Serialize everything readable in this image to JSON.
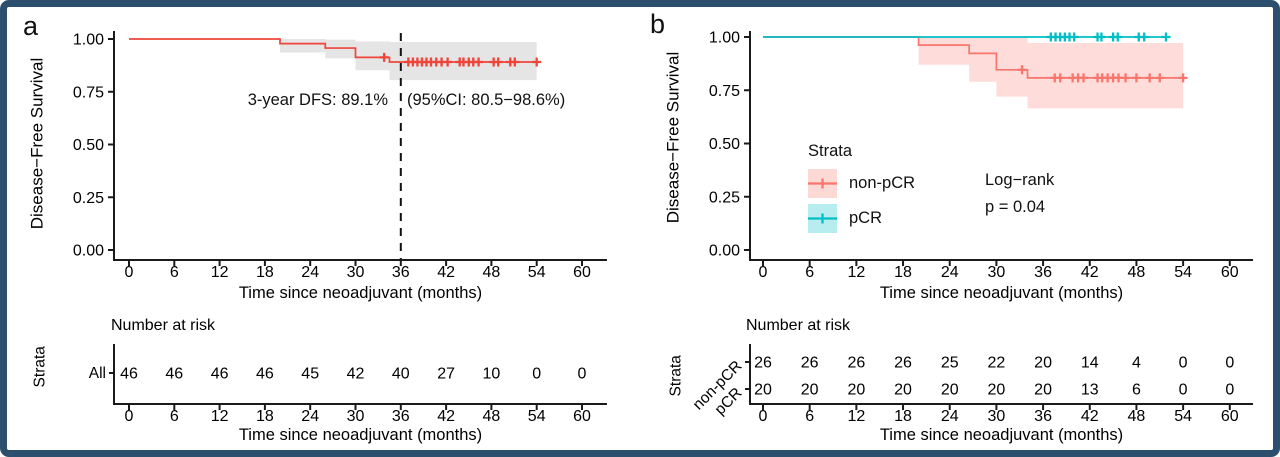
{
  "frame": {
    "border_color": "#2b4f6d",
    "background": "#ffffff"
  },
  "chart_data": [
    {
      "panel_label": "a",
      "type": "line",
      "subtype": "kaplan-meier-step",
      "xlabel": "Time since neoadjuvant (months)",
      "ylabel": "Disease−Free Survival",
      "xlim": [
        0,
        63
      ],
      "ylim": [
        0,
        1.0
      ],
      "xticks": [
        0,
        6,
        12,
        18,
        24,
        30,
        36,
        42,
        48,
        54,
        60
      ],
      "ytick_values": [
        1.0,
        0.75,
        0.5,
        0.25,
        0.0
      ],
      "ytick_labels": [
        "1.00",
        "0.75",
        "0.50",
        "0.25",
        "0.00"
      ],
      "grid": "off",
      "vline_x": 36,
      "vline_style": "dashed-black",
      "annotations": [
        {
          "text": "3-year DFS: 89.1%"
        },
        {
          "text": "(95%CI: 80.5−98.6%)"
        }
      ],
      "series": [
        {
          "name": "All",
          "color": "#ee443a",
          "ci_fill": "#e4e4e4",
          "ci_opacity": 0.95,
          "steps": [
            [
              0,
              1.0
            ],
            [
              20,
              1.0
            ],
            [
              20,
              0.978
            ],
            [
              26,
              0.978
            ],
            [
              26,
              0.957
            ],
            [
              30,
              0.957
            ],
            [
              30,
              0.913
            ],
            [
              34.5,
              0.913
            ],
            [
              34.5,
              0.891
            ],
            [
              54,
              0.891
            ]
          ],
          "ci_upper": [
            [
              20,
              1.0
            ],
            [
              26,
              1.0
            ],
            [
              26,
              0.997
            ],
            [
              30,
              0.997
            ],
            [
              30,
              0.988
            ],
            [
              34.5,
              0.988
            ],
            [
              34.5,
              0.986
            ],
            [
              54,
              0.986
            ]
          ],
          "ci_lower": [
            [
              20,
              0.936
            ],
            [
              26,
              0.936
            ],
            [
              26,
              0.908
            ],
            [
              30,
              0.908
            ],
            [
              30,
              0.852
            ],
            [
              34.5,
              0.852
            ],
            [
              34.5,
              0.805
            ],
            [
              54,
              0.805
            ]
          ],
          "censors": [
            [
              33.8,
              0.913
            ],
            [
              37,
              0.891
            ],
            [
              37.6,
              0.891
            ],
            [
              38.2,
              0.891
            ],
            [
              38.8,
              0.891
            ],
            [
              39.4,
              0.891
            ],
            [
              40,
              0.891
            ],
            [
              40.7,
              0.891
            ],
            [
              41.4,
              0.891
            ],
            [
              42.2,
              0.891
            ],
            [
              43.8,
              0.891
            ],
            [
              44.3,
              0.891
            ],
            [
              45,
              0.891
            ],
            [
              45.6,
              0.891
            ],
            [
              46.3,
              0.891
            ],
            [
              48.3,
              0.891
            ],
            [
              48.9,
              0.891
            ],
            [
              50.5,
              0.891
            ],
            [
              51.1,
              0.891
            ],
            [
              54,
              0.891
            ]
          ]
        }
      ],
      "risk_table": {
        "title": "Number at risk",
        "axis_label": "Strata",
        "xlabel": "Time since neoadjuvant (months)",
        "xticks": [
          0,
          6,
          12,
          18,
          24,
          30,
          36,
          42,
          48,
          54,
          60
        ],
        "rows": [
          {
            "name": "All",
            "color": "#ee443a",
            "values": [
              46,
              46,
              46,
              46,
              45,
              42,
              40,
              27,
              10,
              0,
              0
            ]
          }
        ]
      }
    },
    {
      "panel_label": "b",
      "type": "line",
      "subtype": "kaplan-meier-step",
      "xlabel": "Time since neoadjuvant (months)",
      "ylabel": "Disease−Free Survival",
      "xlim": [
        0,
        63
      ],
      "ylim": [
        0,
        1.0
      ],
      "xticks": [
        0,
        6,
        12,
        18,
        24,
        30,
        36,
        42,
        48,
        54,
        60
      ],
      "ytick_values": [
        1.0,
        0.75,
        0.5,
        0.25,
        0.0
      ],
      "ytick_labels": [
        "1.00",
        "0.75",
        "0.50",
        "0.25",
        "0.00"
      ],
      "grid": "off",
      "vline_x": null,
      "legend": {
        "title": "Strata",
        "position": "inside-left",
        "items": [
          {
            "label": "non-pCR",
            "color": "#f8766d",
            "fill_opacity": 0.28
          },
          {
            "label": "pCR",
            "color": "#00bfc4",
            "fill_opacity": 0.28
          }
        ]
      },
      "logrank": {
        "line1": "Log−rank",
        "line2": "p = 0.04"
      },
      "series": [
        {
          "name": "non-pCR",
          "color": "#f8766d",
          "ci_fill": "#f8766d",
          "ci_opacity": 0.26,
          "steps": [
            [
              0,
              1.0
            ],
            [
              20,
              1.0
            ],
            [
              20,
              0.962
            ],
            [
              26.5,
              0.962
            ],
            [
              26.5,
              0.923
            ],
            [
              30,
              0.923
            ],
            [
              30,
              0.846
            ],
            [
              34,
              0.846
            ],
            [
              34,
              0.808
            ],
            [
              54,
              0.808
            ]
          ],
          "ci_upper": [
            [
              20,
              1.0
            ],
            [
              34,
              1.0
            ],
            [
              34,
              0.972
            ],
            [
              54,
              0.972
            ]
          ],
          "ci_lower": [
            [
              20,
              0.87
            ],
            [
              26.5,
              0.87
            ],
            [
              26.5,
              0.79
            ],
            [
              30,
              0.79
            ],
            [
              30,
              0.72
            ],
            [
              34,
              0.72
            ],
            [
              34,
              0.665
            ],
            [
              54,
              0.665
            ]
          ],
          "censors": [
            [
              33.3,
              0.846
            ],
            [
              37.5,
              0.808
            ],
            [
              38.2,
              0.808
            ],
            [
              39.8,
              0.808
            ],
            [
              40.5,
              0.808
            ],
            [
              41.2,
              0.808
            ],
            [
              43,
              0.808
            ],
            [
              43.6,
              0.808
            ],
            [
              44.3,
              0.808
            ],
            [
              45,
              0.808
            ],
            [
              45.7,
              0.808
            ],
            [
              46.6,
              0.808
            ],
            [
              48,
              0.808
            ],
            [
              49.7,
              0.808
            ],
            [
              51,
              0.808
            ],
            [
              54,
              0.808
            ]
          ]
        },
        {
          "name": "pCR",
          "color": "#00bfc4",
          "ci_fill": null,
          "ci_opacity": 0,
          "steps": [
            [
              0,
              1.0
            ],
            [
              52,
              1.0
            ]
          ],
          "ci_upper": null,
          "ci_lower": null,
          "censors": [
            [
              37,
              1.0
            ],
            [
              37.6,
              1.0
            ],
            [
              38.2,
              1.0
            ],
            [
              38.8,
              1.0
            ],
            [
              39.4,
              1.0
            ],
            [
              40,
              1.0
            ],
            [
              43,
              1.0
            ],
            [
              43.5,
              1.0
            ],
            [
              45,
              1.0
            ],
            [
              45.6,
              1.0
            ],
            [
              48.3,
              1.0
            ],
            [
              49,
              1.0
            ],
            [
              51.8,
              1.0
            ]
          ]
        }
      ],
      "risk_table": {
        "title": "Number at risk",
        "axis_label": "Strata",
        "xlabel": "Time since neoadjuvant (months)",
        "xticks": [
          0,
          6,
          12,
          18,
          24,
          30,
          36,
          42,
          48,
          54,
          60
        ],
        "rows": [
          {
            "name": "non-pCR",
            "color": "#f8766d",
            "values": [
              26,
              26,
              26,
              26,
              25,
              22,
              20,
              14,
              4,
              0,
              0
            ]
          },
          {
            "name": "pCR",
            "color": "#00bfc4",
            "values": [
              20,
              20,
              20,
              20,
              20,
              20,
              20,
              13,
              6,
              0,
              0
            ]
          }
        ]
      }
    }
  ]
}
